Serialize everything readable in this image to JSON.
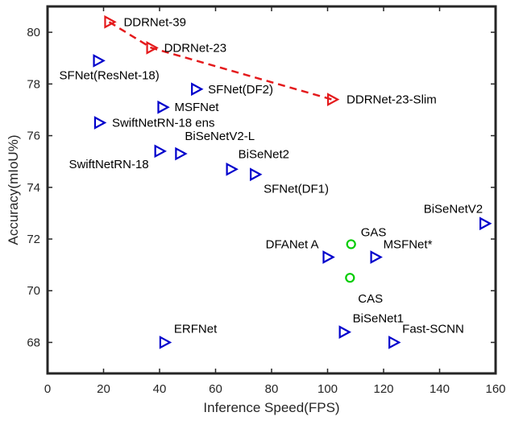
{
  "chart_data": {
    "type": "scatter",
    "title": "",
    "xlabel": "Inference Speed(FPS)",
    "ylabel": "Accuracy(mIoU%)",
    "xlim": [
      0,
      160
    ],
    "ylim": [
      66.8,
      81
    ],
    "xticks": [
      0,
      20,
      40,
      60,
      80,
      100,
      120,
      140,
      160
    ],
    "yticks": [
      68,
      70,
      72,
      74,
      76,
      78,
      80
    ],
    "grid": false,
    "colors": {
      "blue": "#0000cc",
      "red": "#e41a1c",
      "green": "#00cc00",
      "axis": "#262626"
    },
    "series": [
      {
        "color": "blue",
        "marker": "triangle-right",
        "points": [
          {
            "label": "SFNet(ResNet-18)",
            "x": 18,
            "y": 78.9
          },
          {
            "label": "SFNet(DF2)",
            "x": 53,
            "y": 77.8
          },
          {
            "label": "MSFNet",
            "x": 41,
            "y": 77.1
          },
          {
            "label": "SwiftNetRN-18 ens",
            "x": 18.4,
            "y": 76.5
          },
          {
            "label": "SwiftNetRN-18",
            "x": 39.9,
            "y": 75.4
          },
          {
            "label": "BiSeNetV2-L",
            "x": 47.3,
            "y": 75.3
          },
          {
            "label": "BiSeNet2",
            "x": 65.5,
            "y": 74.7
          },
          {
            "label": "SFNet(DF1)",
            "x": 74,
            "y": 74.5
          },
          {
            "label": "BiSeNetV2",
            "x": 156,
            "y": 72.6
          },
          {
            "label": "DFANet A",
            "x": 100,
            "y": 71.3
          },
          {
            "label": "MSFNet*",
            "x": 117,
            "y": 71.3
          },
          {
            "label": "ERFNet",
            "x": 41.7,
            "y": 68.0
          },
          {
            "label": "BiSeNet1",
            "x": 105.8,
            "y": 68.4
          },
          {
            "label": "Fast-SCNN",
            "x": 123.5,
            "y": 68.0
          }
        ]
      },
      {
        "color": "red",
        "marker": "triangle-right",
        "line": "dashed",
        "points": [
          {
            "label": "DDRNet-39",
            "x": 22,
            "y": 80.4
          },
          {
            "label": "DDRNet-23",
            "x": 37,
            "y": 79.4
          },
          {
            "label": "DDRNet-23-Slim",
            "x": 101.6,
            "y": 77.4
          }
        ]
      },
      {
        "color": "green",
        "marker": "circle",
        "points": [
          {
            "label": "GAS",
            "x": 108.4,
            "y": 71.8
          },
          {
            "label": "CAS",
            "x": 108,
            "y": 70.5
          }
        ]
      }
    ]
  }
}
